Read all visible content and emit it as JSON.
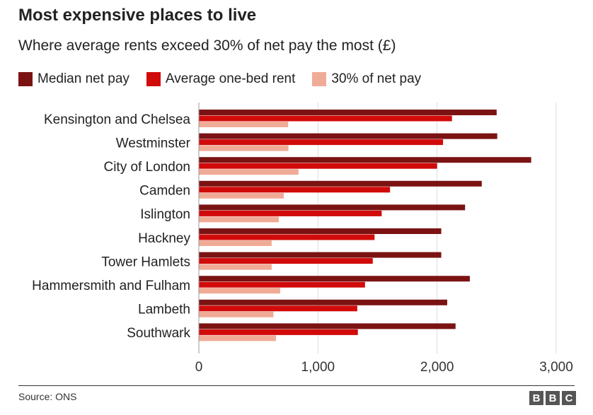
{
  "header": {
    "title": "Most expensive places to live",
    "subtitle": "Where average rents exceed 30% of net pay the most (£)"
  },
  "footer": {
    "source": "Source: ONS",
    "logo_letters": [
      "B",
      "B",
      "C"
    ]
  },
  "colors": {
    "median_net_pay": "#7b1313",
    "average_rent": "#d10a0a",
    "thirty_percent": "#f0ab97",
    "grid": "#dddddd"
  },
  "chart_data": {
    "type": "bar",
    "orientation": "horizontal",
    "title": "Most expensive places to live",
    "subtitle": "Where average rents exceed 30% of net pay the most (£)",
    "categories": [
      "Kensington and Chelsea",
      "Westminster",
      "City of London",
      "Camden",
      "Islington",
      "Hackney",
      "Tower Hamlets",
      "Hammersmith and Fulham",
      "Lambeth",
      "Southwark"
    ],
    "series": [
      {
        "name": "Median net pay",
        "color": "#7b1313",
        "values": [
          2500,
          2505,
          2790,
          2375,
          2235,
          2035,
          2035,
          2275,
          2085,
          2155
        ]
      },
      {
        "name": "Average one-bed rent",
        "color": "#d10a0a",
        "values": [
          2125,
          2050,
          2000,
          1605,
          1535,
          1475,
          1460,
          1395,
          1330,
          1335
        ]
      },
      {
        "name": "30% of net pay",
        "color": "#f0ab97",
        "values": [
          750,
          752,
          837,
          713,
          671,
          611,
          611,
          683,
          626,
          647
        ]
      }
    ],
    "xlim": [
      0,
      3000
    ],
    "xticks": [
      0,
      1000,
      2000,
      3000
    ],
    "xtick_labels": [
      "0",
      "1,000",
      "2,000",
      "3,000"
    ],
    "grid": true,
    "legend_position": "top-left"
  }
}
